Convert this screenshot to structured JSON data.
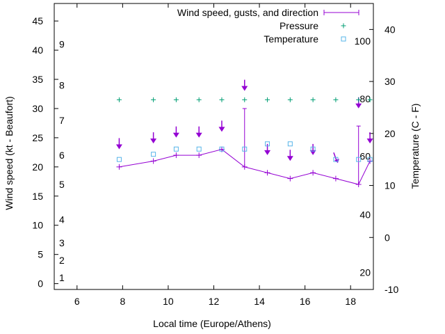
{
  "chart_data": {
    "type": "line",
    "xlabel": "Local time (Europe/Athens)",
    "ylabel": "Wind speed (kt - Beaufort)",
    "y2label": "Temperature (C - F)",
    "xlim": [
      5,
      19
    ],
    "ylim": [
      -1,
      48
    ],
    "y2lim": [
      -10,
      45
    ],
    "x_ticks": [
      6,
      8,
      10,
      12,
      14,
      16,
      18
    ],
    "y_ticks": [
      0,
      5,
      10,
      15,
      20,
      25,
      30,
      35,
      40,
      45
    ],
    "y2_ticks": [
      -10,
      0,
      10,
      20,
      30,
      40
    ],
    "beaufort_labels": [
      {
        "text": "1",
        "y": 1
      },
      {
        "text": "2",
        "y": 4
      },
      {
        "text": "3",
        "y": 7
      },
      {
        "text": "4",
        "y": 11
      },
      {
        "text": "5",
        "y": 17
      },
      {
        "text": "6",
        "y": 22
      },
      {
        "text": "7",
        "y": 28
      },
      {
        "text": "8",
        "y": 34
      },
      {
        "text": "9",
        "y": 41
      }
    ],
    "fahrenheit_labels": [
      {
        "text": "20",
        "y2": -6.7
      },
      {
        "text": "40",
        "y2": 4.4
      },
      {
        "text": "60",
        "y2": 15.6
      },
      {
        "text": "80",
        "y2": 26.7
      },
      {
        "text": "100",
        "y2": 37.8
      }
    ],
    "grid": false,
    "legend_position": "top-right",
    "series": [
      {
        "name": "Wind speed, gusts, and direction",
        "color": "#9400d3",
        "x": [
          7.85,
          9.35,
          10.35,
          11.35,
          12.35,
          13.35,
          14.35,
          15.35,
          16.35,
          17.35,
          18.35,
          18.85
        ],
        "values": [
          20,
          21,
          22,
          22,
          23,
          20,
          19,
          18,
          19,
          18,
          17,
          21
        ],
        "gusts": [
          null,
          null,
          null,
          null,
          null,
          30,
          null,
          null,
          null,
          null,
          27,
          null
        ],
        "arrows": [
          {
            "x": 7.85,
            "y": 23.5,
            "dir": "down"
          },
          {
            "x": 9.35,
            "y": 24.5,
            "dir": "down"
          },
          {
            "x": 10.35,
            "y": 25.5,
            "dir": "down"
          },
          {
            "x": 11.35,
            "y": 25.5,
            "dir": "down"
          },
          {
            "x": 12.35,
            "y": 26.5,
            "dir": "down"
          },
          {
            "x": 13.35,
            "y": 33.5,
            "dir": "down"
          },
          {
            "x": 14.35,
            "y": 22.5,
            "dir": "down"
          },
          {
            "x": 15.35,
            "y": 21.5,
            "dir": "down"
          },
          {
            "x": 16.35,
            "y": 22.5,
            "dir": "down"
          },
          {
            "x": 17.35,
            "y": 21.5,
            "dir": "down-right"
          },
          {
            "x": 18.35,
            "y": 30.5,
            "dir": "down"
          },
          {
            "x": 18.85,
            "y": 24.5,
            "dir": "down"
          }
        ]
      },
      {
        "name": "Pressure",
        "color": "#009e73",
        "marker": "plus",
        "x": [
          7.85,
          9.35,
          10.35,
          11.35,
          12.35,
          13.35,
          14.35,
          15.35,
          16.35,
          17.35,
          18.35,
          18.85
        ],
        "values": [
          31.5,
          31.5,
          31.5,
          31.5,
          31.5,
          31.5,
          31.5,
          31.5,
          31.5,
          31.5,
          31.5,
          31.5
        ]
      },
      {
        "name": "Temperature",
        "color": "#56b4e9",
        "marker": "square",
        "axis": "y2",
        "x": [
          7.85,
          9.35,
          10.35,
          11.35,
          12.35,
          13.35,
          14.35,
          15.35,
          16.35,
          17.35,
          18.35,
          18.85
        ],
        "values": [
          15,
          16,
          17,
          17,
          17,
          17,
          18,
          18,
          17,
          15,
          15,
          15
        ]
      }
    ]
  }
}
